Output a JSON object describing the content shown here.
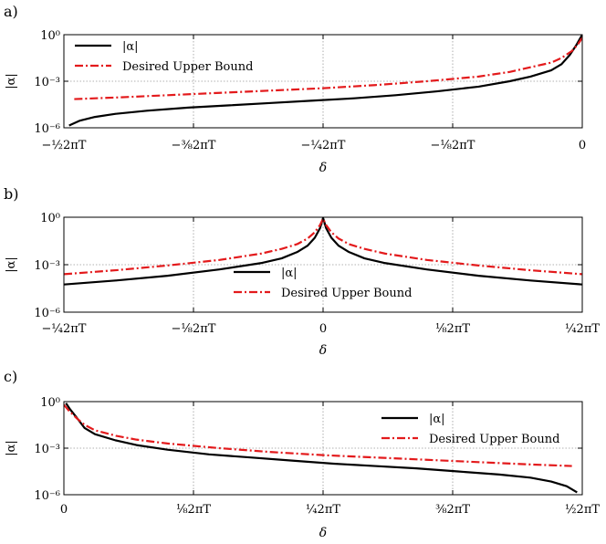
{
  "chart_data": [
    {
      "type": "line",
      "panel_label": "a)",
      "xlabel": "δ",
      "ylabel": "|α|",
      "yscale": "log",
      "ylim_exp": [
        -6,
        0
      ],
      "xlim_frac": [
        -0.5,
        0
      ],
      "x_ticks": [
        {
          "frac": -0.5,
          "text": "−½2πT"
        },
        {
          "frac": -0.375,
          "text": "−⅜2πT"
        },
        {
          "frac": -0.25,
          "text": "−¼2πT"
        },
        {
          "frac": -0.125,
          "text": "−⅛2πT"
        },
        {
          "frac": 0,
          "text": "0"
        }
      ],
      "y_ticks": [
        {
          "exp": 0,
          "text": "10⁰"
        },
        {
          "exp": -3,
          "text": "10⁻³"
        },
        {
          "exp": -6,
          "text": "10⁻⁶"
        }
      ],
      "legend": {
        "position": "top-left",
        "entries": [
          "|α|",
          "Desired Upper Bound"
        ]
      },
      "series": [
        {
          "name": "|α|",
          "color": "#000000",
          "style": "solid",
          "x_frac": [
            -0.495,
            -0.485,
            -0.47,
            -0.45,
            -0.42,
            -0.38,
            -0.34,
            -0.3,
            -0.26,
            -0.22,
            -0.18,
            -0.14,
            -0.1,
            -0.07,
            -0.05,
            -0.03,
            -0.02,
            -0.012,
            -0.006,
            0
          ],
          "log10_y": [
            -5.85,
            -5.55,
            -5.3,
            -5.1,
            -4.9,
            -4.7,
            -4.55,
            -4.4,
            -4.25,
            -4.1,
            -3.9,
            -3.65,
            -3.35,
            -3.0,
            -2.7,
            -2.3,
            -1.9,
            -1.3,
            -0.7,
            0
          ]
        },
        {
          "name": "Desired Upper Bound",
          "color": "#e31a1c",
          "style": "dashdot",
          "x_frac": [
            -0.49,
            -0.45,
            -0.4,
            -0.35,
            -0.3,
            -0.25,
            -0.2,
            -0.15,
            -0.1,
            -0.07,
            -0.05,
            -0.03,
            -0.02,
            -0.01,
            -0.004,
            0
          ],
          "log10_y": [
            -4.15,
            -4.05,
            -3.9,
            -3.75,
            -3.6,
            -3.45,
            -3.25,
            -3.0,
            -2.7,
            -2.4,
            -2.1,
            -1.8,
            -1.5,
            -1.05,
            -0.6,
            -0.2
          ]
        }
      ]
    },
    {
      "type": "line",
      "panel_label": "b)",
      "xlabel": "δ",
      "ylabel": "|α|",
      "yscale": "log",
      "ylim_exp": [
        -6,
        0
      ],
      "xlim_frac": [
        -0.25,
        0.25
      ],
      "x_ticks": [
        {
          "frac": -0.25,
          "text": "−¼2πT"
        },
        {
          "frac": -0.125,
          "text": "−⅛2πT"
        },
        {
          "frac": 0,
          "text": "0"
        },
        {
          "frac": 0.125,
          "text": "⅛2πT"
        },
        {
          "frac": 0.25,
          "text": "¼2πT"
        }
      ],
      "y_ticks": [
        {
          "exp": 0,
          "text": "10⁰"
        },
        {
          "exp": -3,
          "text": "10⁻³"
        },
        {
          "exp": -6,
          "text": "10⁻⁶"
        }
      ],
      "legend": {
        "position": "center",
        "entries": [
          "|α|",
          "Desired Upper Bound"
        ]
      },
      "series": [
        {
          "name": "|α|",
          "color": "#000000",
          "style": "solid",
          "x_frac": [
            -0.25,
            -0.2,
            -0.15,
            -0.1,
            -0.06,
            -0.04,
            -0.025,
            -0.015,
            -0.008,
            -0.003,
            0,
            0.003,
            0.008,
            0.015,
            0.025,
            0.04,
            0.06,
            0.1,
            0.15,
            0.2,
            0.25
          ],
          "log10_y": [
            -4.25,
            -4.0,
            -3.7,
            -3.3,
            -2.9,
            -2.6,
            -2.2,
            -1.8,
            -1.3,
            -0.7,
            -0.05,
            -0.7,
            -1.3,
            -1.8,
            -2.2,
            -2.6,
            -2.9,
            -3.3,
            -3.7,
            -4.0,
            -4.25
          ]
        },
        {
          "name": "Desired Upper Bound",
          "color": "#e31a1c",
          "style": "dashdot",
          "x_frac": [
            -0.25,
            -0.2,
            -0.15,
            -0.1,
            -0.06,
            -0.04,
            -0.025,
            -0.015,
            -0.008,
            -0.003,
            0,
            0.003,
            0.008,
            0.015,
            0.025,
            0.04,
            0.06,
            0.1,
            0.15,
            0.2,
            0.25
          ],
          "log10_y": [
            -3.6,
            -3.35,
            -3.05,
            -2.7,
            -2.3,
            -2.0,
            -1.7,
            -1.35,
            -0.95,
            -0.5,
            -0.1,
            -0.5,
            -0.95,
            -1.35,
            -1.7,
            -2.0,
            -2.3,
            -2.7,
            -3.05,
            -3.35,
            -3.6
          ]
        }
      ]
    },
    {
      "type": "line",
      "panel_label": "c)",
      "xlabel": "δ",
      "ylabel": "|α|",
      "yscale": "log",
      "ylim_exp": [
        -6,
        0
      ],
      "xlim_frac": [
        0,
        0.5
      ],
      "x_ticks": [
        {
          "frac": 0,
          "text": "0"
        },
        {
          "frac": 0.125,
          "text": "⅛2πT"
        },
        {
          "frac": 0.25,
          "text": "¼2πT"
        },
        {
          "frac": 0.375,
          "text": "⅜2πT"
        },
        {
          "frac": 0.5,
          "text": "½2πT"
        }
      ],
      "y_ticks": [
        {
          "exp": 0,
          "text": "10⁰"
        },
        {
          "exp": -3,
          "text": "10⁻³"
        },
        {
          "exp": -6,
          "text": "10⁻⁶"
        }
      ],
      "legend": {
        "position": "top-right",
        "entries": [
          "|α|",
          "Desired Upper Bound"
        ]
      },
      "series": [
        {
          "name": "|α|",
          "color": "#000000",
          "style": "solid",
          "x_frac": [
            0.002,
            0.006,
            0.012,
            0.02,
            0.03,
            0.05,
            0.07,
            0.1,
            0.14,
            0.18,
            0.22,
            0.26,
            0.3,
            0.34,
            0.38,
            0.42,
            0.45,
            0.47,
            0.485,
            0.495
          ],
          "log10_y": [
            -0.1,
            -0.5,
            -1.0,
            -1.7,
            -2.1,
            -2.5,
            -2.8,
            -3.1,
            -3.4,
            -3.6,
            -3.8,
            -4.0,
            -4.15,
            -4.3,
            -4.5,
            -4.7,
            -4.9,
            -5.15,
            -5.45,
            -5.85
          ]
        },
        {
          "name": "Desired Upper Bound",
          "color": "#e31a1c",
          "style": "dashdot",
          "x_frac": [
            0,
            0.005,
            0.012,
            0.02,
            0.03,
            0.05,
            0.07,
            0.1,
            0.15,
            0.2,
            0.25,
            0.3,
            0.35,
            0.4,
            0.45,
            0.49
          ],
          "log10_y": [
            -0.2,
            -0.6,
            -1.05,
            -1.5,
            -1.85,
            -2.2,
            -2.45,
            -2.7,
            -3.0,
            -3.25,
            -3.45,
            -3.6,
            -3.75,
            -3.9,
            -4.05,
            -4.15
          ]
        }
      ]
    }
  ]
}
